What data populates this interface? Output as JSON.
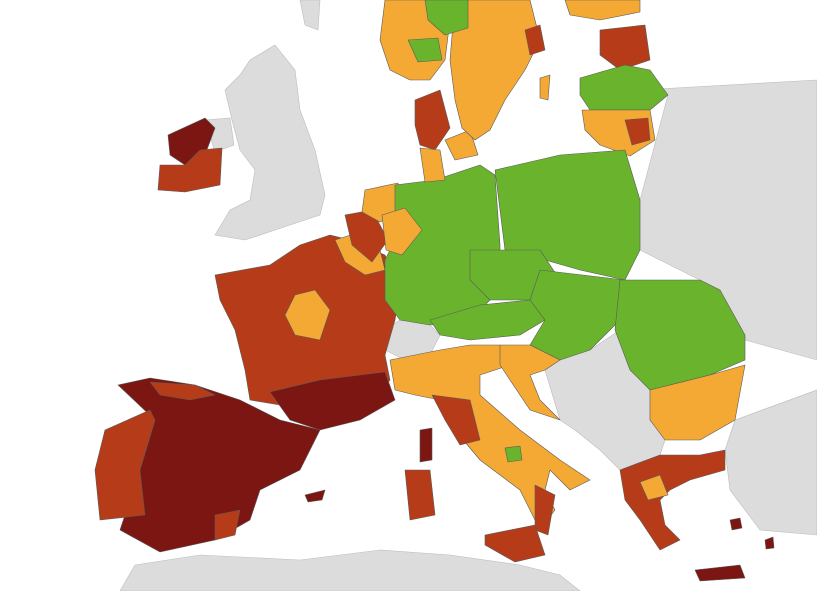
{
  "map": {
    "colors": {
      "sea": "#ffffff",
      "non_eu_land": "#dcdcdc",
      "green": "#6ab42d",
      "orange": "#f4a934",
      "red": "#b63c19",
      "dark_red": "#7b1612"
    }
  }
}
